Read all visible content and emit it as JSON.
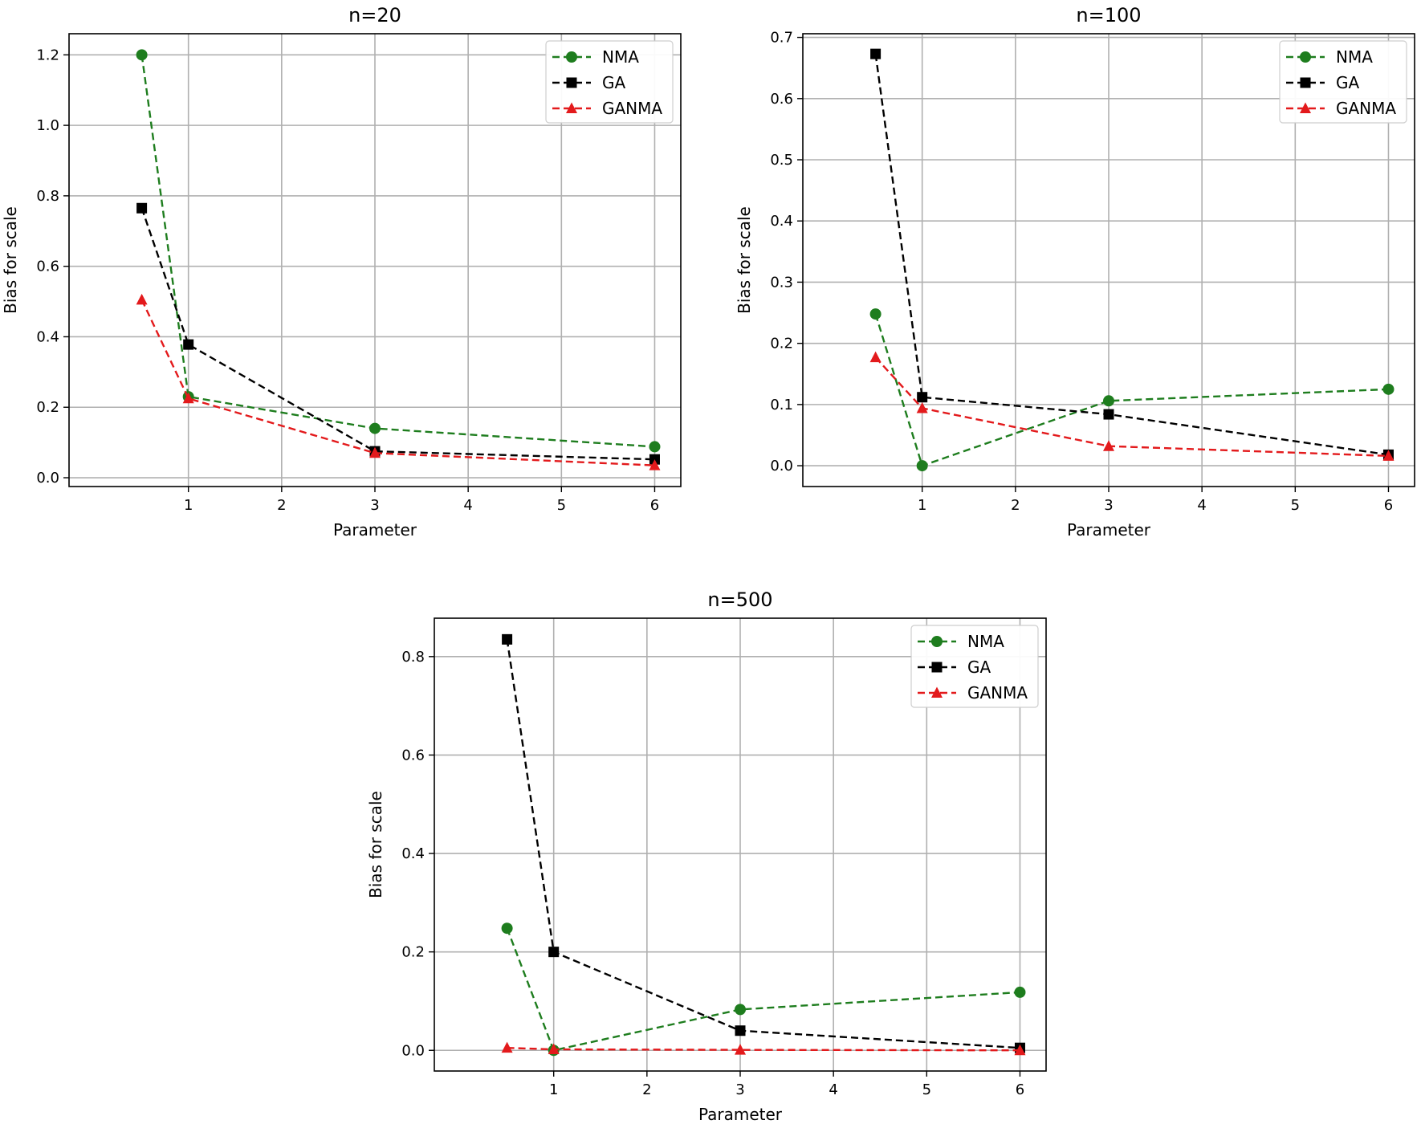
{
  "chart_data": [
    {
      "type": "line",
      "title": "n=20",
      "xlabel": "Parameter",
      "ylabel": "Bias for scale",
      "x": [
        0.5,
        1,
        3,
        6
      ],
      "xlim": [
        -0.28,
        6.28
      ],
      "ylim": [
        -0.025,
        1.26
      ],
      "xticks": [
        1,
        2,
        3,
        4,
        5,
        6
      ],
      "yticks": [
        0.0,
        0.2,
        0.4,
        0.6,
        0.8,
        1.0,
        1.2
      ],
      "ytick_labels": [
        "0.0",
        "0.2",
        "0.4",
        "0.6",
        "0.8",
        "1.0",
        "1.2"
      ],
      "grid": true,
      "legend_position": "top-right",
      "series": [
        {
          "name": "NMA",
          "values": [
            1.2,
            0.23,
            0.14,
            0.088
          ],
          "color": "#1e7d1e",
          "marker": "circle"
        },
        {
          "name": "GA",
          "values": [
            0.765,
            0.378,
            0.075,
            0.052
          ],
          "color": "#000000",
          "marker": "square"
        },
        {
          "name": "GANMA",
          "values": [
            0.505,
            0.225,
            0.07,
            0.035
          ],
          "color": "#e31a1c",
          "marker": "triangle"
        }
      ]
    },
    {
      "type": "line",
      "title": "n=100",
      "xlabel": "Parameter",
      "ylabel": "Bias for scale",
      "x": [
        0.5,
        1,
        3,
        6
      ],
      "xlim": [
        -0.28,
        6.28
      ],
      "ylim": [
        -0.034,
        0.706
      ],
      "xticks": [
        1,
        2,
        3,
        4,
        5,
        6
      ],
      "yticks": [
        0.0,
        0.1,
        0.2,
        0.3,
        0.4,
        0.5,
        0.6,
        0.7
      ],
      "ytick_labels": [
        "0.0",
        "0.1",
        "0.2",
        "0.3",
        "0.4",
        "0.5",
        "0.6",
        "0.7"
      ],
      "grid": true,
      "legend_position": "top-right",
      "series": [
        {
          "name": "NMA",
          "values": [
            0.248,
            0.0,
            0.106,
            0.125
          ],
          "color": "#1e7d1e",
          "marker": "circle"
        },
        {
          "name": "GA",
          "values": [
            0.673,
            0.112,
            0.084,
            0.018
          ],
          "color": "#000000",
          "marker": "square"
        },
        {
          "name": "GANMA",
          "values": [
            0.177,
            0.094,
            0.032,
            0.016
          ],
          "color": "#e31a1c",
          "marker": "triangle"
        }
      ]
    },
    {
      "type": "line",
      "title": "n=500",
      "xlabel": "Parameter",
      "ylabel": "Bias for scale",
      "x": [
        0.5,
        1,
        3,
        6
      ],
      "xlim": [
        -0.28,
        6.28
      ],
      "ylim": [
        -0.042,
        0.878
      ],
      "xticks": [
        1,
        2,
        3,
        4,
        5,
        6
      ],
      "yticks": [
        0.0,
        0.2,
        0.4,
        0.6,
        0.8
      ],
      "ytick_labels": [
        "0.0",
        "0.2",
        "0.4",
        "0.6",
        "0.8"
      ],
      "grid": true,
      "legend_position": "top-right",
      "series": [
        {
          "name": "NMA",
          "values": [
            0.248,
            0.0,
            0.083,
            0.118
          ],
          "color": "#1e7d1e",
          "marker": "circle"
        },
        {
          "name": "GA",
          "values": [
            0.835,
            0.2,
            0.04,
            0.005
          ],
          "color": "#000000",
          "marker": "square"
        },
        {
          "name": "GANMA",
          "values": [
            0.005,
            0.002,
            0.001,
            0.0
          ],
          "color": "#e31a1c",
          "marker": "triangle"
        }
      ]
    }
  ]
}
